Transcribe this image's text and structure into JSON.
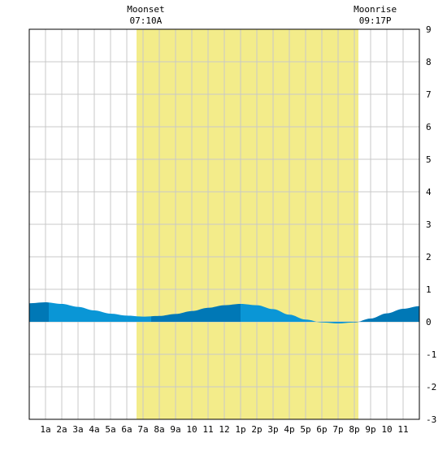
{
  "chart_data": {
    "type": "area",
    "title": "",
    "xlabel": "",
    "ylabel": "",
    "x_unit": "hours (0 = midnight)",
    "xlim": [
      0,
      24
    ],
    "ylim": [
      -3,
      9
    ],
    "grid": true,
    "x_tick_labels": [
      "1a",
      "2a",
      "3a",
      "4a",
      "5a",
      "6a",
      "7a",
      "8a",
      "9a",
      "10",
      "11",
      "12",
      "1p",
      "2p",
      "3p",
      "4p",
      "5p",
      "6p",
      "7p",
      "8p",
      "9p",
      "10",
      "11"
    ],
    "y_tick_labels": [
      "9",
      "8",
      "7",
      "6",
      "5",
      "4",
      "3",
      "2",
      "1",
      "0",
      "-1",
      "-2",
      "-3"
    ],
    "daylight_band": {
      "start_hour": 6.6,
      "end_hour": 20.25,
      "color": "#f3ec8a"
    },
    "annotations": [
      {
        "id": "moonset",
        "name": "Moonset",
        "time": "07:10A",
        "hour": 7.17
      },
      {
        "id": "moonrise",
        "name": "Moonrise",
        "time": "09:17P",
        "hour": 21.28
      }
    ],
    "series": [
      {
        "x": [
          0,
          1,
          2,
          3,
          4,
          5,
          6,
          7,
          8,
          9,
          10,
          11,
          12,
          13,
          14,
          15,
          16,
          17,
          18,
          19,
          20,
          21,
          22,
          23,
          24
        ],
        "values": [
          0.57,
          0.6,
          0.55,
          0.46,
          0.35,
          0.25,
          0.19,
          0.16,
          0.18,
          0.24,
          0.33,
          0.43,
          0.51,
          0.55,
          0.51,
          0.39,
          0.22,
          0.07,
          -0.02,
          -0.05,
          -0.02,
          0.1,
          0.26,
          0.4,
          0.48
        ]
      }
    ],
    "colors": {
      "water_light": "#0a96d6",
      "water_dark": "#0078b6",
      "grid": "#c8c8c8",
      "frame": "#000000"
    }
  }
}
